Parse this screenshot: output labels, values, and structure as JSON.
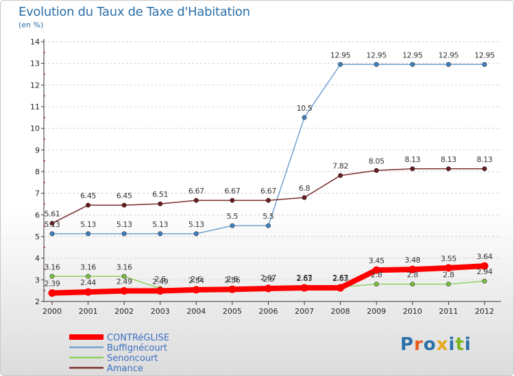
{
  "title": "Evolution du Taux de Taxe d'Habitation",
  "subtitle": "(en %)",
  "logo_text": "Proxiti",
  "colors": {
    "title": "#2a6fa8",
    "logo_letters": [
      "#2a6fa8",
      "#e65a1e",
      "#2a6fa8",
      "#e6a51e",
      "#2a6fa8",
      "#7ab520",
      "#2a6fa8"
    ]
  },
  "chart_data": {
    "type": "line",
    "title": "Evolution du Taux de Taxe d'Habitation",
    "ylabel": "(en %)",
    "xlabel": "",
    "x": [
      2000,
      2001,
      2002,
      2003,
      2004,
      2005,
      2006,
      2007,
      2008,
      2009,
      2010,
      2011,
      2012
    ],
    "ylim": [
      2,
      14
    ],
    "yticks": [
      2,
      3,
      4,
      5,
      6,
      7,
      8,
      9,
      10,
      11,
      12,
      13,
      14
    ],
    "grid": "horizontal dashed",
    "legend": "bottom-left",
    "series": [
      {
        "name": "CONTRéGLISE",
        "color": "#ff0000",
        "marker_color": "#ff0000",
        "thick": true,
        "values": [
          2.39,
          2.44,
          2.49,
          2.49,
          2.54,
          2.56,
          2.6,
          2.63,
          2.63,
          3.45,
          3.48,
          3.55,
          3.64
        ],
        "labels": [
          "2.39",
          "2.44",
          "2.49",
          "2.49",
          "2.54",
          "2.56",
          "2.6",
          "2.63",
          "2.63",
          "3.45",
          "3.48",
          "3.55",
          "3.64"
        ]
      },
      {
        "name": "Buffignécourt",
        "color": "#6fa0d0",
        "marker_color": "#3c82c4",
        "thick": false,
        "values": [
          5.13,
          5.13,
          5.13,
          5.13,
          5.13,
          5.5,
          5.5,
          10.5,
          12.95,
          12.95,
          12.95,
          12.95,
          12.95
        ],
        "labels": [
          "5.13",
          "5.13",
          "5.13",
          "5.13",
          "5.13",
          "5.5",
          "5.5",
          "10.5",
          "12.95",
          "12.95",
          "12.95",
          "12.95",
          "12.95"
        ]
      },
      {
        "name": "Senoncourt",
        "color": "#8fd060",
        "marker_color": "#7ac23c",
        "thick": false,
        "values": [
          3.16,
          3.16,
          3.16,
          2.6,
          2.6,
          2.6,
          2.67,
          2.67,
          2.67,
          2.8,
          2.8,
          2.8,
          2.94
        ],
        "labels": [
          "3.16",
          "3.16",
          "3.16",
          "2.6",
          "2.6",
          "2.6",
          "2.67",
          "2.67",
          "2.67",
          "2.8",
          "2.8",
          "2.8",
          "2.94"
        ]
      },
      {
        "name": "Amance",
        "color": "#7a2a2a",
        "marker_color": "#6a1a1a",
        "thick": false,
        "values": [
          5.61,
          6.45,
          6.45,
          6.51,
          6.67,
          6.67,
          6.67,
          6.8,
          7.82,
          8.05,
          8.13,
          8.13,
          8.13
        ],
        "labels": [
          "5.61",
          "6.45",
          "6.45",
          "6.51",
          "6.67",
          "6.67",
          "6.67",
          "6.8",
          "7.82",
          "8.05",
          "8.13",
          "8.13",
          "8.13"
        ]
      }
    ]
  }
}
